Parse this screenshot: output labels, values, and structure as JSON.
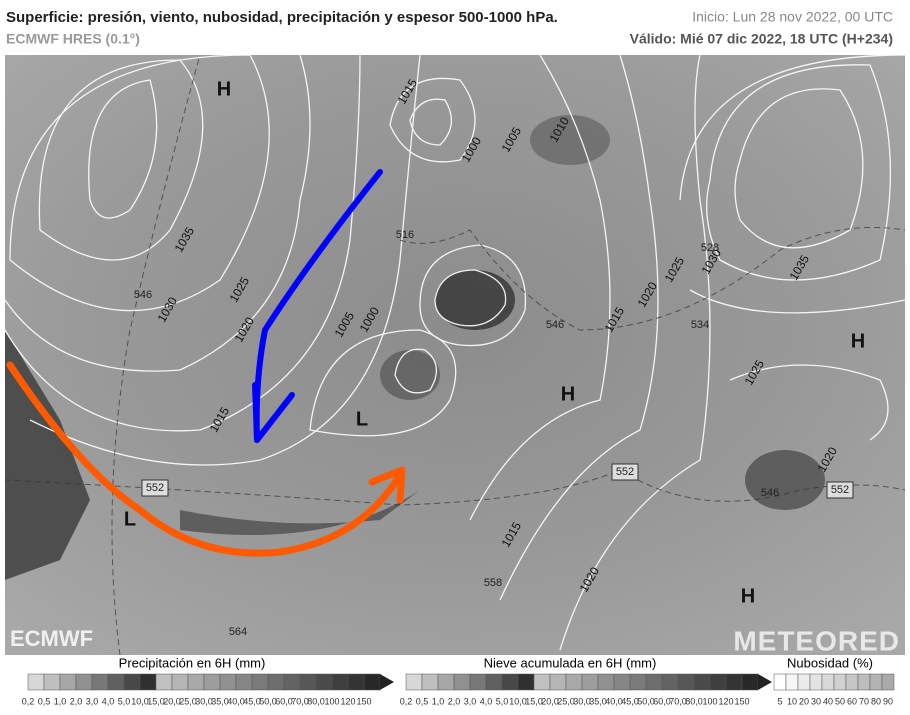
{
  "header": {
    "title": "Superficie: presión, viento, nubosidad, precipitación y espesor 500-1000 hPa.",
    "model": "ECMWF HRES (0.1°)",
    "init": "Inicio: Lun 28 nov 2022, 00 UTC",
    "valid": "Válido: Mié 07 dic 2022, 18 UTC (H+234)"
  },
  "map": {
    "labels": [
      "H",
      "H",
      "H",
      "H",
      "L",
      "L",
      "1035",
      "1030",
      "1025",
      "1020",
      "1015",
      "1015",
      "1020",
      "1015",
      "1020",
      "1025",
      "1030",
      "1035",
      "1025",
      "1010",
      "1005",
      "1000",
      "1015",
      "1000",
      "1005",
      "1020"
    ],
    "thickness": [
      "552",
      "552",
      "552",
      "546",
      "546",
      "546",
      "534",
      "528",
      "558",
      "564",
      "516"
    ],
    "logos": [
      "ECMWF",
      "METEORED"
    ]
  },
  "legend": {
    "precipitation": {
      "title": "Precipitación en 6H (mm)",
      "ticks": [
        "0,2",
        "0,5",
        "1,0",
        "2,0",
        "3,0",
        "4,0",
        "5,0",
        "10,0",
        "15,0",
        "20,0",
        "25,0",
        "30,0",
        "35,0",
        "40,0",
        "45,0",
        "50,0",
        "60,0",
        "70,0",
        "80,0",
        "100",
        "120",
        "150"
      ]
    },
    "snow": {
      "title": "Nieve acumulada en 6H (mm)",
      "ticks": [
        "0,2",
        "0,5",
        "1,0",
        "2,0",
        "3,0",
        "4,0",
        "5,0",
        "10,0",
        "15,0",
        "20,0",
        "25,0",
        "30,0",
        "35,0",
        "40,0",
        "45,0",
        "50,0",
        "60,0",
        "70,0",
        "80,0",
        "100",
        "120",
        "150"
      ]
    },
    "cloud": {
      "title": "Nubosidad (%)",
      "ticks": [
        "5",
        "10",
        "20",
        "30",
        "40",
        "50",
        "60",
        "70",
        "80",
        "90"
      ]
    }
  }
}
